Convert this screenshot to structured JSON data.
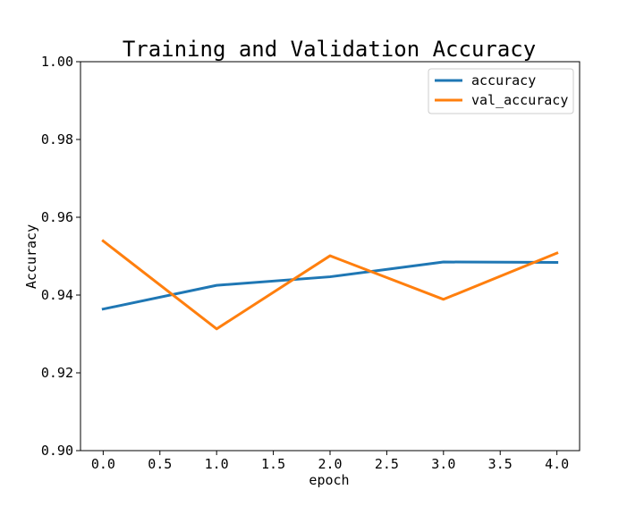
{
  "chart_data": {
    "type": "line",
    "title": "Training and Validation Accuracy",
    "xlabel": "epoch",
    "ylabel": "Accuracy",
    "xlim": [
      -0.2,
      4.2
    ],
    "ylim": [
      0.9,
      1.0
    ],
    "x_ticks": [
      "0.0",
      "0.5",
      "1.0",
      "1.5",
      "2.0",
      "2.5",
      "3.0",
      "3.5",
      "4.0"
    ],
    "y_ticks": [
      "0.90",
      "0.92",
      "0.94",
      "0.96",
      "0.98",
      "1.00"
    ],
    "x": [
      0,
      1,
      2,
      3,
      4
    ],
    "series": [
      {
        "name": "accuracy",
        "color": "#1f77b4",
        "values": [
          0.9364,
          0.9425,
          0.9447,
          0.9485,
          0.9484
        ]
      },
      {
        "name": "val_accuracy",
        "color": "#ff7f0e",
        "values": [
          0.9539,
          0.9313,
          0.9501,
          0.9389,
          0.9508
        ]
      }
    ],
    "legend_position": "top-right",
    "grid": false
  }
}
